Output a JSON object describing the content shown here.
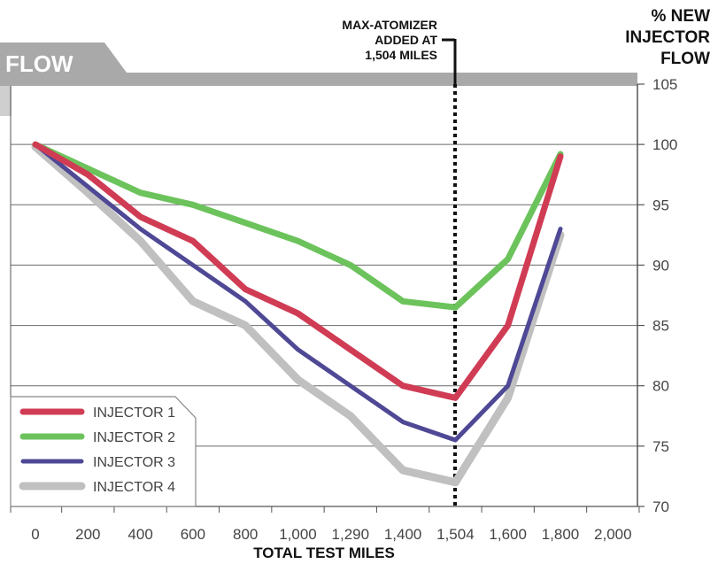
{
  "chart_data": {
    "type": "line",
    "title": "FLOW",
    "xlabel": "TOTAL TEST MILES",
    "ylabel_lines": [
      "% NEW",
      "INJECTOR",
      "FLOW"
    ],
    "x_tick_labels": [
      "0",
      "200",
      "400",
      "600",
      "800",
      "1,000",
      "1,290",
      "1,400",
      "1,504",
      "1,600",
      "1,800",
      "2,000"
    ],
    "y_ticks": [
      70,
      75,
      80,
      85,
      90,
      95,
      100,
      105
    ],
    "ylim": [
      70,
      105
    ],
    "grid": true,
    "legend_position": "bottom-left",
    "annotation": {
      "lines": [
        "MAX-ATOMIZER",
        "ADDED AT",
        "1,504 MILES"
      ],
      "x_label": "1,504"
    },
    "series": [
      {
        "name": "INJECTOR 1",
        "color": "#d03c54",
        "values": [
          100,
          97.5,
          94,
          92,
          88,
          86,
          83,
          80,
          79,
          85,
          99
        ]
      },
      {
        "name": "INJECTOR 2",
        "color": "#6cc35c",
        "values": [
          100,
          98,
          96,
          95,
          93.5,
          92,
          90,
          87,
          86.5,
          90.5,
          99.2
        ]
      },
      {
        "name": "INJECTOR 3",
        "color": "#4e4895",
        "values": [
          100,
          96.5,
          93,
          90,
          87,
          83,
          80,
          77,
          75.5,
          80,
          93
        ]
      },
      {
        "name": "INJECTOR 4",
        "color": "#c0c0c0",
        "values": [
          99.8,
          96,
          92,
          87,
          85,
          80.5,
          77.5,
          73,
          72,
          79,
          92.5
        ]
      }
    ]
  }
}
